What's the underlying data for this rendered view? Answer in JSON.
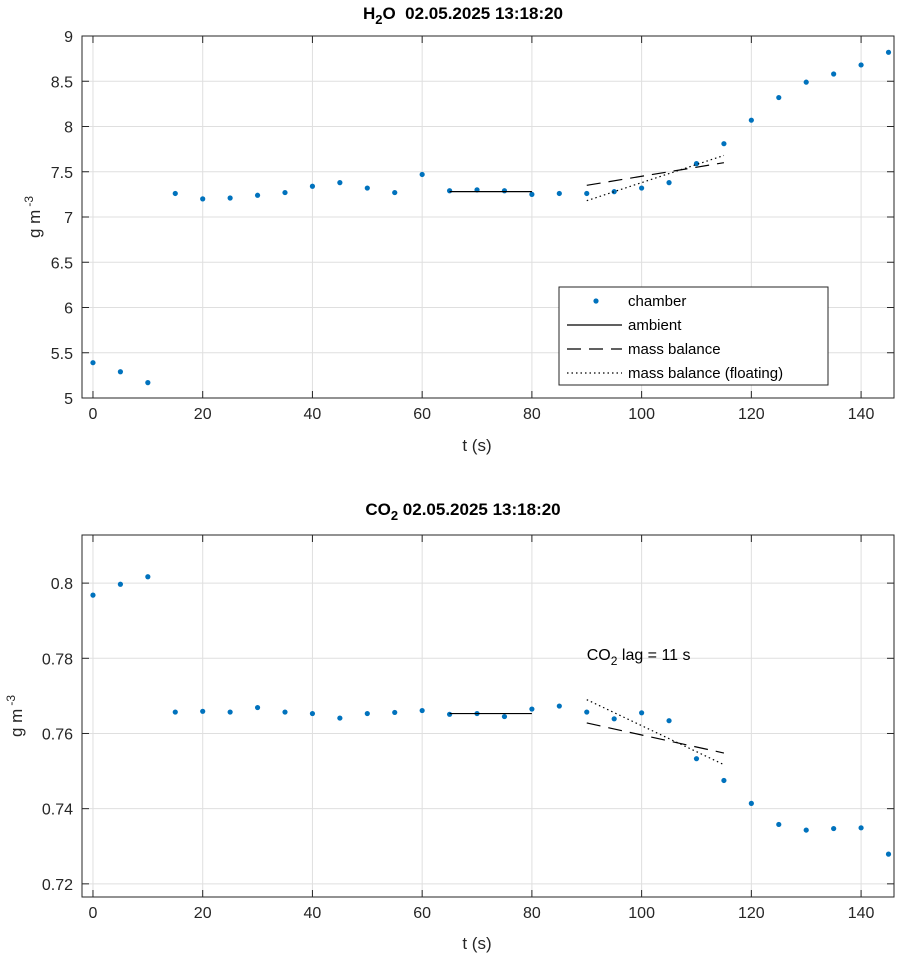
{
  "chart_data": [
    {
      "type": "scatter",
      "title_main": "H",
      "title_sub": "2",
      "title_rest": "O  02.05.2025 13:18:20",
      "xlabel": "t (s)",
      "ylabel_main": "g m",
      "ylabel_sup": "-3",
      "xlim": [
        -2,
        146
      ],
      "ylim": [
        5,
        9
      ],
      "xticks": [
        0,
        20,
        40,
        60,
        80,
        100,
        120,
        140
      ],
      "xtick_labels": [
        "0",
        "20",
        "40",
        "60",
        "80",
        "100",
        "120",
        "140"
      ],
      "yticks": [
        5,
        5.5,
        6,
        6.5,
        7,
        7.5,
        8,
        8.5,
        9
      ],
      "ytick_labels": [
        "5",
        "5.5",
        "6",
        "6.5",
        "7",
        "7.5",
        "8",
        "8.5",
        "9"
      ],
      "grid": true,
      "legend_position": "bottom-right",
      "series": [
        {
          "name": "chamber",
          "style": "dots",
          "x": [
            0,
            5,
            10,
            15,
            20,
            25,
            30,
            35,
            40,
            45,
            50,
            55,
            60,
            65,
            70,
            75,
            80,
            85,
            90,
            95,
            100,
            105,
            110,
            115,
            120,
            125,
            130,
            135,
            140,
            145
          ],
          "y": [
            5.39,
            5.29,
            5.17,
            7.26,
            7.2,
            7.21,
            7.24,
            7.27,
            7.34,
            7.38,
            7.32,
            7.27,
            7.47,
            7.29,
            7.3,
            7.29,
            7.25,
            7.26,
            7.26,
            7.28,
            7.32,
            7.38,
            7.59,
            7.81,
            8.07,
            8.32,
            8.49,
            8.58,
            8.68,
            8.82
          ]
        },
        {
          "name": "ambient",
          "style": "solid",
          "x": [
            65,
            80
          ],
          "y": [
            7.28,
            7.28
          ]
        },
        {
          "name": "mass balance",
          "style": "dashed",
          "x": [
            90,
            115
          ],
          "y": [
            7.35,
            7.6
          ]
        },
        {
          "name": "mass balance (floating)",
          "style": "dotted",
          "x": [
            90,
            115
          ],
          "y": [
            7.18,
            7.68
          ]
        }
      ]
    },
    {
      "type": "scatter",
      "title_main": "CO",
      "title_sub": "2",
      "title_rest": " 02.05.2025 13:18:20",
      "xlabel": "t (s)",
      "ylabel_main": "g m",
      "ylabel_sup": "-3",
      "xlim": [
        -2,
        146
      ],
      "ylim": [
        0.7165,
        0.8128
      ],
      "xticks": [
        0,
        20,
        40,
        60,
        80,
        100,
        120,
        140
      ],
      "xtick_labels": [
        "0",
        "20",
        "40",
        "60",
        "80",
        "100",
        "120",
        "140"
      ],
      "yticks": [
        0.72,
        0.74,
        0.76,
        0.78,
        0.8
      ],
      "ytick_labels": [
        "0.72",
        "0.74",
        "0.76",
        "0.78",
        "0.8"
      ],
      "grid": true,
      "annotation": {
        "main": "CO",
        "sub": "2",
        "rest": " lag = 11 s",
        "x": 90,
        "y": 0.7795
      },
      "series": [
        {
          "name": "chamber",
          "style": "dots",
          "x": [
            0,
            5,
            10,
            15,
            20,
            25,
            30,
            35,
            40,
            45,
            50,
            55,
            60,
            65,
            70,
            75,
            80,
            85,
            90,
            95,
            100,
            105,
            110,
            115,
            120,
            125,
            130,
            135,
            140,
            145
          ],
          "y": [
            0.7968,
            0.7997,
            0.8017,
            0.7657,
            0.7659,
            0.7657,
            0.7669,
            0.7657,
            0.7653,
            0.7641,
            0.7653,
            0.7656,
            0.7661,
            0.7651,
            0.7653,
            0.7645,
            0.7665,
            0.7673,
            0.7657,
            0.7639,
            0.7655,
            0.7634,
            0.7533,
            0.7475,
            0.7414,
            0.7358,
            0.7343,
            0.7347,
            0.7349,
            0.7279
          ]
        },
        {
          "name": "ambient",
          "style": "solid",
          "x": [
            65,
            80
          ],
          "y": [
            0.7653,
            0.7653
          ]
        },
        {
          "name": "mass balance",
          "style": "dashed",
          "x": [
            90,
            115
          ],
          "y": [
            0.7628,
            0.7548
          ]
        },
        {
          "name": "mass balance (floating)",
          "style": "dotted",
          "x": [
            90,
            115
          ],
          "y": [
            0.769,
            0.7517
          ]
        }
      ]
    }
  ],
  "colors": {
    "dots": "#0072BD",
    "lines": "#000000",
    "grid": "#DFDFDF",
    "axis": "#262626"
  }
}
